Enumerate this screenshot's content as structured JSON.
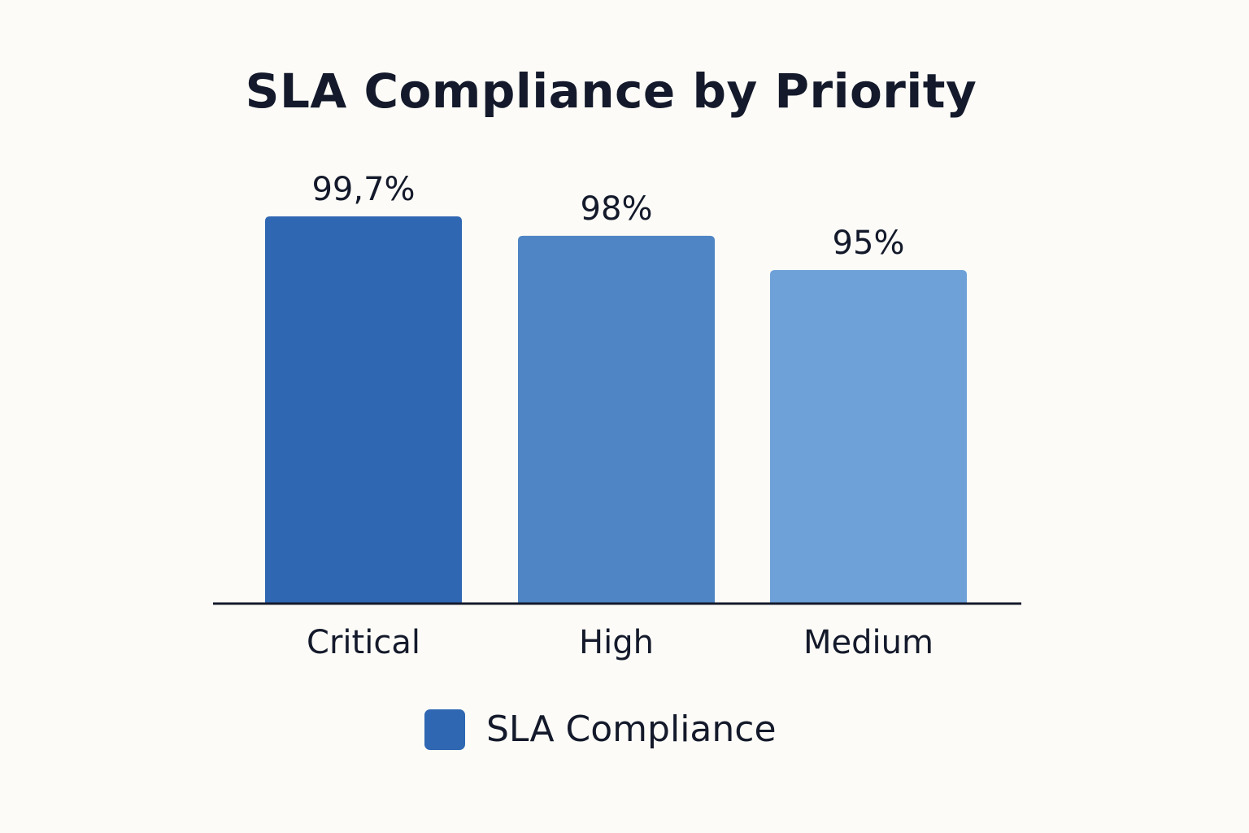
{
  "chart_data": {
    "type": "bar",
    "title": "SLA Compliance by Priority",
    "categories": [
      "Critical",
      "High",
      "Medium"
    ],
    "series": [
      {
        "name": "SLA Compliance",
        "values": [
          99.7,
          98,
          95
        ],
        "value_labels": [
          "99,7%",
          "98%",
          "95%"
        ]
      }
    ],
    "bar_colors": [
      "#2f67b2",
      "#4f85c4",
      "#6ea1d8"
    ],
    "legend_color": "#2f67b2",
    "axis_color": "#141a2b",
    "grid": false,
    "legend_position": "bottom-center",
    "ylim": [
      0,
      100
    ]
  }
}
